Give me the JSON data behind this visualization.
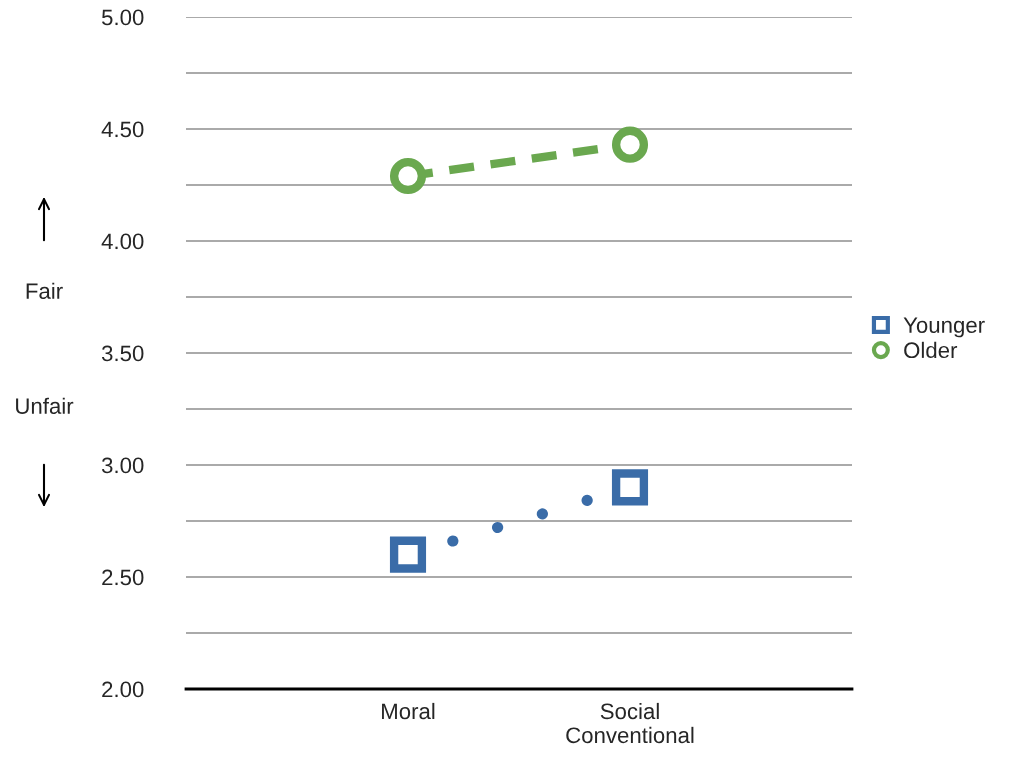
{
  "chart_data": {
    "type": "line",
    "categories": [
      "Moral",
      "Social\nConventional"
    ],
    "series": [
      {
        "name": "Younger",
        "color": "#3a6ca8",
        "values": [
          2.6,
          2.9
        ],
        "marker": "square",
        "line_style": "dotted"
      },
      {
        "name": "Older",
        "color": "#6aa84f",
        "values": [
          4.29,
          4.43
        ],
        "marker": "circle",
        "line_style": "dashed"
      }
    ],
    "ylim": [
      2.0,
      5.0
    ],
    "yticks": [
      {
        "value": 2.0,
        "label": "2.00"
      },
      {
        "value": 2.25,
        "label": null
      },
      {
        "value": 2.5,
        "label": "2.50"
      },
      {
        "value": 2.75,
        "label": null
      },
      {
        "value": 3.0,
        "label": "3.00"
      },
      {
        "value": 3.25,
        "label": null
      },
      {
        "value": 3.5,
        "label": "3.50"
      },
      {
        "value": 3.75,
        "label": null
      },
      {
        "value": 4.0,
        "label": "4.00"
      },
      {
        "value": 4.25,
        "label": null
      },
      {
        "value": 4.5,
        "label": "4.50"
      },
      {
        "value": 4.75,
        "label": null
      },
      {
        "value": 5.0,
        "label": "5.00"
      }
    ],
    "grid": "y",
    "legend": "right",
    "annotations": [
      "Fair",
      "Unfair"
    ]
  }
}
